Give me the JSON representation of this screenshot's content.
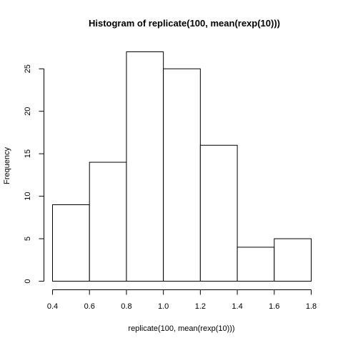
{
  "chart_data": {
    "type": "bar",
    "title": "Histogram of replicate(100, mean(rexp(10)))",
    "xlabel": "replicate(100, mean(rexp(10)))",
    "ylabel": "Frequency",
    "bins": [
      {
        "start": 0.4,
        "end": 0.6,
        "count": 9
      },
      {
        "start": 0.6,
        "end": 0.8,
        "count": 14
      },
      {
        "start": 0.8,
        "end": 1.0,
        "count": 27
      },
      {
        "start": 1.0,
        "end": 1.2,
        "count": 25
      },
      {
        "start": 1.2,
        "end": 1.4,
        "count": 16
      },
      {
        "start": 1.4,
        "end": 1.6,
        "count": 4
      },
      {
        "start": 1.6,
        "end": 1.8,
        "count": 5
      }
    ],
    "x_ticks": [
      "0.4",
      "0.6",
      "0.8",
      "1.0",
      "1.2",
      "1.4",
      "1.6",
      "1.8"
    ],
    "y_ticks": [
      "0",
      "5",
      "10",
      "15",
      "20",
      "25"
    ],
    "xlim": [
      0.4,
      1.8
    ],
    "ylim": [
      0,
      27
    ],
    "grid": false
  }
}
